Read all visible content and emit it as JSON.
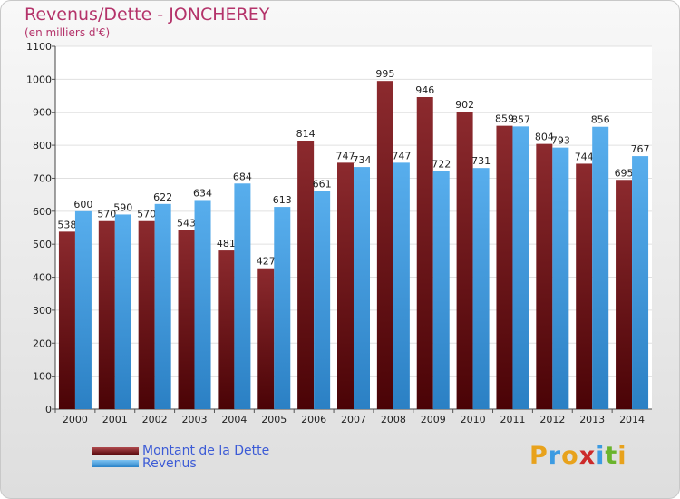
{
  "chart_data": {
    "type": "bar",
    "title": "Revenus/Dette - JONCHEREY",
    "subtitle": "(en milliers d'€)",
    "categories": [
      "2000",
      "2001",
      "2002",
      "2003",
      "2004",
      "2005",
      "2006",
      "2007",
      "2008",
      "2009",
      "2010",
      "2011",
      "2012",
      "2013",
      "2014"
    ],
    "series": [
      {
        "name": "Montant de la Dette",
        "color": "#7a1418",
        "values": [
          538,
          570,
          570,
          543,
          481,
          427,
          814,
          747,
          995,
          946,
          902,
          859,
          804,
          744,
          695
        ]
      },
      {
        "name": "Revenus",
        "color": "#3c9be2",
        "values": [
          600,
          590,
          622,
          634,
          684,
          613,
          661,
          734,
          747,
          722,
          731,
          857,
          793,
          856,
          767
        ]
      }
    ],
    "ylim": [
      0,
      1100
    ],
    "yticks": [
      0,
      100,
      200,
      300,
      400,
      500,
      600,
      700,
      800,
      900,
      1000,
      1100
    ],
    "grid": true,
    "legend": "bottom-left"
  },
  "logo": {
    "text": "Proxiti",
    "colors": [
      "#e8a21c",
      "#3c9be2",
      "#e8a21c",
      "#cc2a2a",
      "#3c9be2",
      "#6ab42d",
      "#e8a21c"
    ]
  }
}
